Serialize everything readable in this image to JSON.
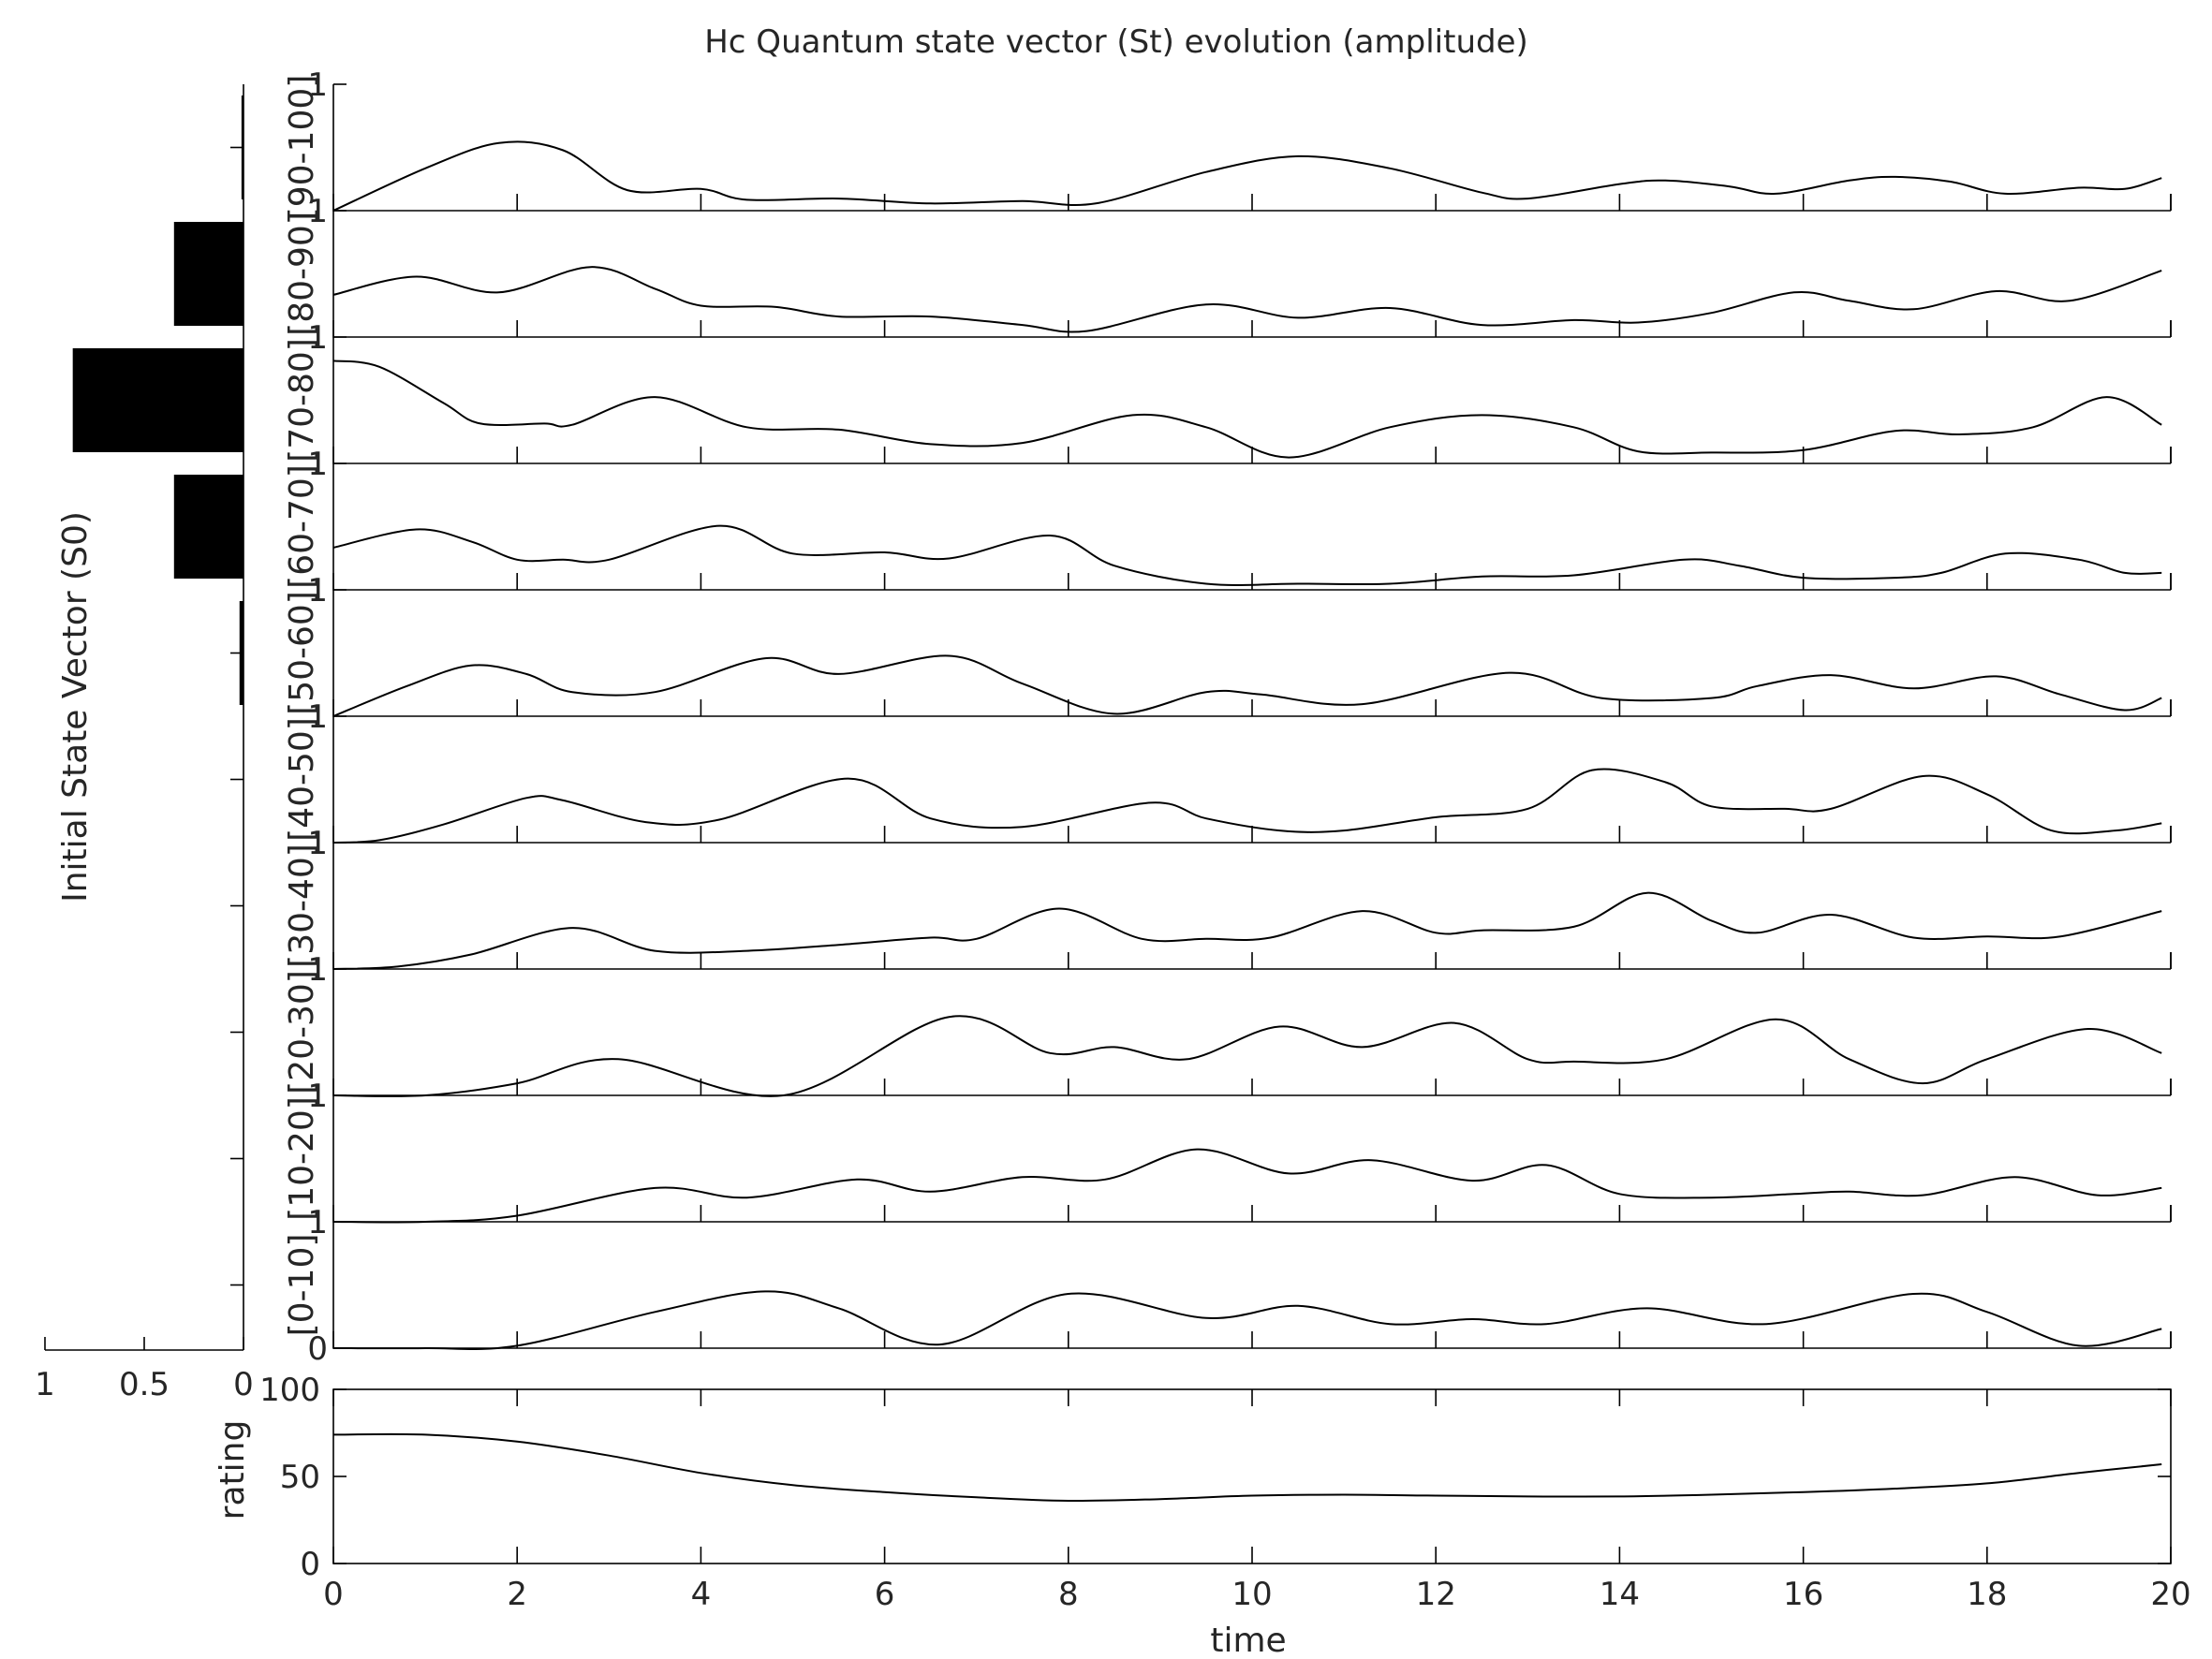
{
  "chart_data": {
    "type": "line",
    "title": "Hc Quantum state vector (St) evolution (amplitude)",
    "panels": [
      {
        "label": "[90-100]",
        "ylim": [
          0,
          1
        ],
        "yticks": [
          "1"
        ],
        "t": [
          0,
          1,
          1.8,
          2.5,
          3.2,
          4,
          4.5,
          5.5,
          6.5,
          7.5,
          8.3,
          9.5,
          10.5,
          11.5,
          12.5,
          13,
          14,
          14.5,
          15.2,
          15.7,
          16.5,
          17,
          17.6,
          18.2,
          19,
          19.5,
          19.9
        ],
        "y": [
          0.0,
          0.35,
          0.56,
          0.5,
          0.17,
          0.18,
          0.09,
          0.1,
          0.06,
          0.08,
          0.06,
          0.32,
          0.45,
          0.35,
          0.15,
          0.1,
          0.22,
          0.25,
          0.2,
          0.14,
          0.25,
          0.28,
          0.24,
          0.14,
          0.19,
          0.18,
          0.27
        ]
      },
      {
        "label": "[80-90]",
        "ylim": [
          0,
          1
        ],
        "yticks": [
          "1"
        ],
        "t": [
          0,
          0.9,
          1.8,
          2.8,
          3.5,
          4,
          4.8,
          5.5,
          6.5,
          7.5,
          8.2,
          9.5,
          10.5,
          11.5,
          12.5,
          13.5,
          14.2,
          15,
          15.9,
          16.5,
          17.2,
          18.1,
          18.9,
          19.9
        ],
        "y": [
          0.35,
          0.5,
          0.37,
          0.58,
          0.4,
          0.26,
          0.25,
          0.17,
          0.17,
          0.1,
          0.05,
          0.27,
          0.16,
          0.24,
          0.1,
          0.14,
          0.12,
          0.2,
          0.37,
          0.3,
          0.23,
          0.38,
          0.3,
          0.55
        ]
      },
      {
        "label": "[70-80]",
        "ylim": [
          0,
          1
        ],
        "yticks": [
          "1"
        ],
        "t": [
          0,
          0.5,
          1.2,
          1.6,
          2.3,
          2.6,
          3.5,
          4.5,
          5.5,
          6.5,
          7.5,
          8.7,
          9.5,
          10.4,
          11.5,
          12.5,
          13.5,
          14.2,
          15,
          16,
          17,
          17.7,
          18.5,
          19.3,
          19.9
        ],
        "y": [
          0.85,
          0.8,
          0.5,
          0.33,
          0.33,
          0.32,
          0.55,
          0.3,
          0.28,
          0.16,
          0.17,
          0.4,
          0.3,
          0.05,
          0.3,
          0.4,
          0.3,
          0.1,
          0.09,
          0.11,
          0.27,
          0.24,
          0.3,
          0.55,
          0.32
        ]
      },
      {
        "label": "[60-70]",
        "ylim": [
          0,
          1
        ],
        "yticks": [
          "1"
        ],
        "t": [
          0,
          0.9,
          1.5,
          2,
          2.5,
          3,
          4.2,
          5,
          6,
          6.7,
          7.8,
          8.5,
          9.5,
          10.5,
          11.5,
          12.5,
          13.5,
          14.7,
          15.3,
          16,
          17,
          17.5,
          18.2,
          19,
          19.5,
          19.9
        ],
        "y": [
          0.35,
          0.5,
          0.4,
          0.25,
          0.25,
          0.25,
          0.53,
          0.3,
          0.31,
          0.26,
          0.45,
          0.2,
          0.05,
          0.05,
          0.05,
          0.11,
          0.12,
          0.25,
          0.2,
          0.1,
          0.1,
          0.14,
          0.3,
          0.25,
          0.14,
          0.14
        ]
      },
      {
        "label": "[50-60]",
        "ylim": [
          0,
          1
        ],
        "yticks": [
          "1"
        ],
        "t": [
          0,
          0.8,
          1.5,
          2.1,
          2.6,
          3.5,
          4.7,
          5.5,
          6.7,
          7.5,
          8.5,
          9.5,
          10.1,
          11.2,
          12.8,
          13.8,
          15,
          15.5,
          16.3,
          17.2,
          18.1,
          18.8,
          19.5,
          19.9
        ],
        "y": [
          0.0,
          0.25,
          0.42,
          0.35,
          0.2,
          0.2,
          0.48,
          0.35,
          0.5,
          0.27,
          0.02,
          0.2,
          0.18,
          0.1,
          0.36,
          0.15,
          0.15,
          0.25,
          0.34,
          0.23,
          0.33,
          0.18,
          0.05,
          0.15
        ]
      },
      {
        "label": "[40-50]",
        "ylim": [
          0,
          1
        ],
        "yticks": [
          "1"
        ],
        "t": [
          0,
          0.5,
          1.2,
          2.1,
          2.5,
          3.4,
          4.2,
          5.6,
          6.5,
          7.5,
          8.9,
          9.5,
          10.3,
          11,
          12,
          13,
          13.7,
          14.5,
          15,
          15.8,
          16.3,
          17.3,
          18,
          18.7,
          19.4,
          19.9
        ],
        "y": [
          0.0,
          0.02,
          0.15,
          0.37,
          0.35,
          0.17,
          0.19,
          0.53,
          0.2,
          0.13,
          0.33,
          0.2,
          0.1,
          0.1,
          0.21,
          0.28,
          0.6,
          0.5,
          0.3,
          0.28,
          0.28,
          0.55,
          0.4,
          0.1,
          0.1,
          0.16
        ]
      },
      {
        "label": "[30-40]",
        "ylim": [
          0,
          1
        ],
        "yticks": [
          "1"
        ],
        "t": [
          0,
          0.7,
          1.5,
          2.6,
          3.5,
          4.5,
          5.5,
          6.5,
          7,
          7.9,
          8.8,
          9.5,
          10.2,
          11.2,
          12,
          12.5,
          13.5,
          14.3,
          15,
          15.5,
          16.3,
          17.2,
          18,
          18.8,
          19.9
        ],
        "y": [
          0.0,
          0.02,
          0.12,
          0.34,
          0.15,
          0.15,
          0.2,
          0.26,
          0.25,
          0.5,
          0.25,
          0.25,
          0.26,
          0.48,
          0.3,
          0.32,
          0.35,
          0.63,
          0.4,
          0.3,
          0.45,
          0.26,
          0.27,
          0.27,
          0.48
        ]
      },
      {
        "label": "[20-30]",
        "ylim": [
          0,
          1
        ],
        "yticks": [
          "1"
        ],
        "t": [
          0,
          1,
          2,
          3.1,
          4.9,
          6.7,
          7.8,
          8.5,
          9.3,
          10.3,
          11.2,
          12.2,
          13,
          13.5,
          14.5,
          15.7,
          16.5,
          17.3,
          18,
          19.1,
          19.9
        ],
        "y": [
          0.0,
          0.0,
          0.1,
          0.3,
          0.0,
          0.65,
          0.35,
          0.4,
          0.3,
          0.57,
          0.4,
          0.6,
          0.3,
          0.28,
          0.3,
          0.63,
          0.3,
          0.1,
          0.3,
          0.55,
          0.35
        ]
      },
      {
        "label": "[10-20]",
        "ylim": [
          0,
          1
        ],
        "yticks": [
          "1"
        ],
        "t": [
          0,
          1,
          2,
          3.5,
          4.5,
          5.7,
          6.5,
          7.5,
          8.4,
          9.4,
          10.4,
          11.3,
          12.4,
          13.2,
          14,
          15,
          15.9,
          16.5,
          17.3,
          18.3,
          19.2,
          19.9
        ],
        "y": [
          0.0,
          0.0,
          0.05,
          0.28,
          0.2,
          0.35,
          0.25,
          0.37,
          0.35,
          0.6,
          0.4,
          0.51,
          0.34,
          0.47,
          0.23,
          0.2,
          0.23,
          0.25,
          0.22,
          0.37,
          0.22,
          0.28
        ]
      },
      {
        "label": "[0-10]",
        "ylim": [
          0,
          1
        ],
        "yticks": [
          "0",
          "1"
        ],
        "t": [
          0,
          1,
          2,
          3.5,
          4.7,
          5.5,
          6.6,
          8,
          9.5,
          10.5,
          11.5,
          12.4,
          13.2,
          14.3,
          15.6,
          17.2,
          18,
          19,
          19.9
        ],
        "y": [
          0.0,
          0.0,
          0.02,
          0.3,
          0.47,
          0.33,
          0.03,
          0.45,
          0.25,
          0.35,
          0.2,
          0.24,
          0.2,
          0.33,
          0.2,
          0.45,
          0.3,
          0.02,
          0.16
        ]
      }
    ],
    "initial_state": {
      "ylabel": "Initial State Vector (S0)",
      "xticks": [
        "1",
        "0.5",
        "0"
      ],
      "xlim": [
        1,
        0
      ],
      "values": [
        0.01,
        0.35,
        0.86,
        0.35,
        0.02,
        0,
        0,
        0,
        0,
        0
      ]
    },
    "rating": {
      "ylabel": "rating",
      "ylim": [
        0,
        100
      ],
      "yticks": [
        "0",
        "50",
        "100"
      ],
      "t": [
        0,
        1,
        2,
        3,
        4,
        5,
        6,
        7,
        8,
        9,
        10,
        11,
        12,
        13,
        14,
        15,
        16,
        17,
        18,
        19,
        19.9
      ],
      "y": [
        74,
        74,
        70,
        62,
        52,
        45,
        41,
        38,
        36,
        37,
        39,
        39.5,
        39,
        38.5,
        38.5,
        39.5,
        41,
        43,
        46,
        52,
        57
      ]
    },
    "xaxis": {
      "xlabel": "time",
      "xlim": [
        0,
        20
      ],
      "xticks": [
        "0",
        "2",
        "4",
        "6",
        "8",
        "10",
        "12",
        "14",
        "16",
        "18",
        "20"
      ]
    }
  }
}
